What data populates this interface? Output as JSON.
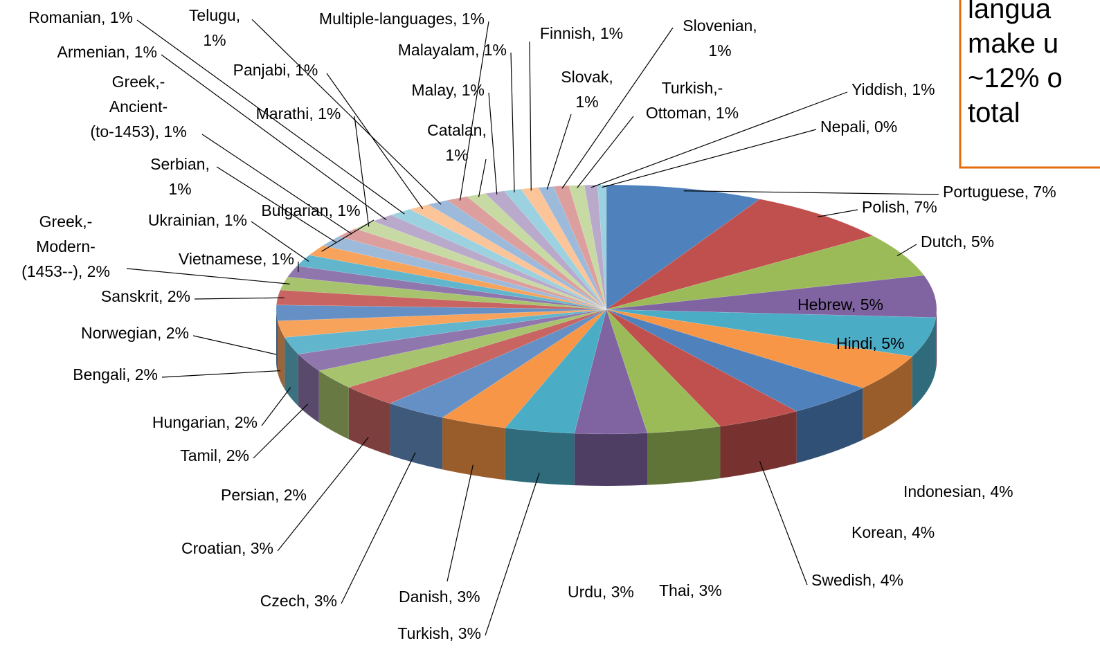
{
  "chart_data": {
    "type": "pie3d",
    "categories": [
      "Portuguese, 7%",
      "Polish, 7%",
      "Dutch, 5%",
      "Hebrew, 5%",
      "Hindi, 5%",
      "Indonesian, 4%",
      "Korean, 4%",
      "Swedish, 4%",
      "Thai, 3%",
      "Urdu, 3%",
      "Turkish, 3%",
      "Danish, 3%",
      "Czech, 3%",
      "Croatian, 3%",
      "Persian, 2%",
      "Tamil, 2%",
      "Hungarian, 2%",
      "Bengali, 2%",
      "Norwegian, 2%",
      "Sanskrit, 2%",
      "Greek,-\nModern-\n(1453--), 2%",
      "Vietnamese, 1%",
      "Ukrainian, 1%",
      "Bulgarian, 1%",
      "Serbian,\n1%",
      "Greek,-\nAncient-\n(to-1453), 1%",
      "Marathi, 1%",
      "Armenian, 1%",
      "Romanian, 1%",
      "Panjabi, 1%",
      "Telugu,\n1%",
      "Multiple-languages, 1%",
      "Catalan,\n1%",
      "Malay, 1%",
      "Malayalam, 1%",
      "Finnish, 1%",
      "Slovak,\n1%",
      "Slovenian,\n1%",
      "Turkish,-\nOttoman, 1%",
      "Yiddish, 1%",
      "Nepali, 0%"
    ],
    "values": [
      7.2,
      6.8,
      5.3,
      5.1,
      4.8,
      4.4,
      4.1,
      3.9,
      3.4,
      3.3,
      3.2,
      3.1,
      2.9,
      2.7,
      2.4,
      2.2,
      2.1,
      2.0,
      1.9,
      1.8,
      1.6,
      1.4,
      1.4,
      1.3,
      1.3,
      1.2,
      1.2,
      1.1,
      1.1,
      1.0,
      1.0,
      1.0,
      0.9,
      0.9,
      0.8,
      0.8,
      0.7,
      0.7,
      0.7,
      0.6,
      0.4
    ],
    "colors": [
      "#4f81bd",
      "#c0504d",
      "#9bbb59",
      "#8064a2",
      "#4bacc6",
      "#f79646"
    ],
    "annotation": [
      "langua",
      "make u",
      "~12% o",
      "total"
    ],
    "annotation_color": "#e46c0a"
  }
}
